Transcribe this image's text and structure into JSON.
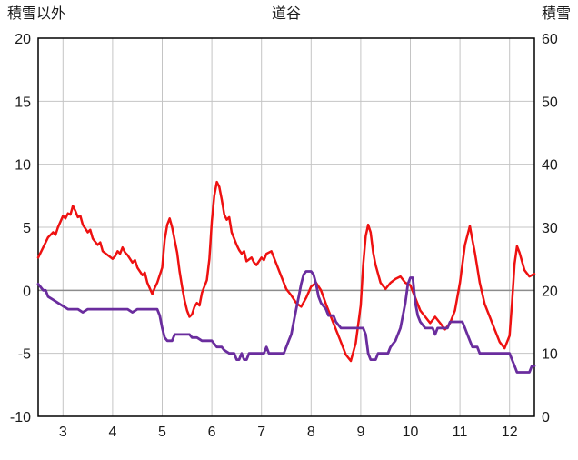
{
  "chart_data": {
    "type": "line",
    "title": "道谷",
    "x_range": [
      2.5,
      12.5
    ],
    "x_ticks": [
      3,
      4,
      5,
      6,
      7,
      8,
      9,
      10,
      11,
      12
    ],
    "grid": true,
    "left_axis": {
      "label": "積雪以外",
      "range": [
        -10,
        20
      ],
      "ticks": [
        -10,
        -5,
        0,
        5,
        10,
        15,
        20
      ]
    },
    "right_axis": {
      "label": "積雪",
      "range": [
        0,
        60
      ],
      "ticks": [
        0,
        10,
        20,
        30,
        40,
        50,
        60
      ]
    },
    "colors": {
      "grid": "#c4c4c4",
      "zero_line": "#8c8c8c",
      "border": "#000000",
      "red_series": "#ee1111",
      "purple_series": "#6a2d9e"
    },
    "series": [
      {
        "name": "積雪以外",
        "axis": "left",
        "color": "#ee1111",
        "width": 2.5,
        "points": [
          [
            2.5,
            2.6
          ],
          [
            2.6,
            3.4
          ],
          [
            2.7,
            4.2
          ],
          [
            2.8,
            4.6
          ],
          [
            2.85,
            4.4
          ],
          [
            2.9,
            5.0
          ],
          [
            3.0,
            5.9
          ],
          [
            3.05,
            5.7
          ],
          [
            3.1,
            6.1
          ],
          [
            3.15,
            6.0
          ],
          [
            3.2,
            6.7
          ],
          [
            3.25,
            6.3
          ],
          [
            3.3,
            5.8
          ],
          [
            3.35,
            5.9
          ],
          [
            3.4,
            5.2
          ],
          [
            3.5,
            4.6
          ],
          [
            3.55,
            4.8
          ],
          [
            3.6,
            4.1
          ],
          [
            3.7,
            3.6
          ],
          [
            3.75,
            3.8
          ],
          [
            3.8,
            3.1
          ],
          [
            3.9,
            2.8
          ],
          [
            4.0,
            2.5
          ],
          [
            4.05,
            2.7
          ],
          [
            4.1,
            3.1
          ],
          [
            4.15,
            2.9
          ],
          [
            4.2,
            3.4
          ],
          [
            4.25,
            3.0
          ],
          [
            4.3,
            2.8
          ],
          [
            4.4,
            2.2
          ],
          [
            4.45,
            2.4
          ],
          [
            4.5,
            1.8
          ],
          [
            4.6,
            1.2
          ],
          [
            4.65,
            1.4
          ],
          [
            4.7,
            0.6
          ],
          [
            4.8,
            -0.3
          ],
          [
            4.85,
            0.2
          ],
          [
            4.9,
            0.6
          ],
          [
            5.0,
            1.8
          ],
          [
            5.05,
            4.0
          ],
          [
            5.1,
            5.2
          ],
          [
            5.15,
            5.7
          ],
          [
            5.2,
            5.0
          ],
          [
            5.3,
            3.0
          ],
          [
            5.35,
            1.5
          ],
          [
            5.4,
            0.3
          ],
          [
            5.45,
            -0.8
          ],
          [
            5.5,
            -1.6
          ],
          [
            5.55,
            -2.1
          ],
          [
            5.6,
            -1.9
          ],
          [
            5.65,
            -1.3
          ],
          [
            5.7,
            -1.0
          ],
          [
            5.75,
            -1.2
          ],
          [
            5.8,
            -0.2
          ],
          [
            5.9,
            0.8
          ],
          [
            5.95,
            2.5
          ],
          [
            6.0,
            5.5
          ],
          [
            6.05,
            7.5
          ],
          [
            6.1,
            8.6
          ],
          [
            6.15,
            8.2
          ],
          [
            6.2,
            7.2
          ],
          [
            6.25,
            6.0
          ],
          [
            6.3,
            5.6
          ],
          [
            6.35,
            5.8
          ],
          [
            6.4,
            4.6
          ],
          [
            6.5,
            3.6
          ],
          [
            6.55,
            3.2
          ],
          [
            6.6,
            2.9
          ],
          [
            6.65,
            3.1
          ],
          [
            6.7,
            2.3
          ],
          [
            6.8,
            2.6
          ],
          [
            6.85,
            2.2
          ],
          [
            6.9,
            2.0
          ],
          [
            7.0,
            2.6
          ],
          [
            7.05,
            2.4
          ],
          [
            7.1,
            2.9
          ],
          [
            7.2,
            3.1
          ],
          [
            7.3,
            2.1
          ],
          [
            7.4,
            1.1
          ],
          [
            7.5,
            0.1
          ],
          [
            7.6,
            -0.4
          ],
          [
            7.7,
            -1.0
          ],
          [
            7.8,
            -1.3
          ],
          [
            7.9,
            -0.6
          ],
          [
            8.0,
            0.3
          ],
          [
            8.1,
            0.6
          ],
          [
            8.15,
            0.3
          ],
          [
            8.2,
            0.0
          ],
          [
            8.3,
            -1.1
          ],
          [
            8.4,
            -2.1
          ],
          [
            8.5,
            -3.1
          ],
          [
            8.6,
            -4.1
          ],
          [
            8.7,
            -5.1
          ],
          [
            8.8,
            -5.6
          ],
          [
            8.9,
            -4.2
          ],
          [
            9.0,
            -1.2
          ],
          [
            9.05,
            2.0
          ],
          [
            9.1,
            4.3
          ],
          [
            9.15,
            5.2
          ],
          [
            9.2,
            4.6
          ],
          [
            9.25,
            3.0
          ],
          [
            9.3,
            2.0
          ],
          [
            9.4,
            0.6
          ],
          [
            9.5,
            0.1
          ],
          [
            9.6,
            0.6
          ],
          [
            9.7,
            0.9
          ],
          [
            9.8,
            1.1
          ],
          [
            9.9,
            0.6
          ],
          [
            10.0,
            0.4
          ],
          [
            10.1,
            -0.6
          ],
          [
            10.2,
            -1.6
          ],
          [
            10.3,
            -2.1
          ],
          [
            10.4,
            -2.6
          ],
          [
            10.5,
            -2.1
          ],
          [
            10.6,
            -2.6
          ],
          [
            10.7,
            -3.1
          ],
          [
            10.8,
            -2.6
          ],
          [
            10.9,
            -1.6
          ],
          [
            11.0,
            0.6
          ],
          [
            11.1,
            3.6
          ],
          [
            11.2,
            5.1
          ],
          [
            11.25,
            4.0
          ],
          [
            11.3,
            3.0
          ],
          [
            11.4,
            0.6
          ],
          [
            11.5,
            -1.1
          ],
          [
            11.6,
            -2.1
          ],
          [
            11.7,
            -3.1
          ],
          [
            11.8,
            -4.1
          ],
          [
            11.9,
            -4.6
          ],
          [
            12.0,
            -3.6
          ],
          [
            12.05,
            -1.0
          ],
          [
            12.1,
            2.1
          ],
          [
            12.15,
            3.5
          ],
          [
            12.2,
            3.0
          ],
          [
            12.3,
            1.6
          ],
          [
            12.4,
            1.1
          ],
          [
            12.5,
            1.3
          ]
        ]
      },
      {
        "name": "積雪",
        "axis": "right",
        "color": "#6a2d9e",
        "width": 2.8,
        "points": [
          [
            2.5,
            21
          ],
          [
            2.6,
            20
          ],
          [
            2.65,
            20
          ],
          [
            2.7,
            19
          ],
          [
            2.8,
            18.5
          ],
          [
            2.9,
            18
          ],
          [
            3.0,
            17.5
          ],
          [
            3.1,
            17
          ],
          [
            3.3,
            17
          ],
          [
            3.4,
            16.5
          ],
          [
            3.5,
            17
          ],
          [
            4.3,
            17
          ],
          [
            4.4,
            16.5
          ],
          [
            4.5,
            17
          ],
          [
            4.9,
            17
          ],
          [
            4.95,
            16
          ],
          [
            5.0,
            14
          ],
          [
            5.05,
            12.5
          ],
          [
            5.1,
            12
          ],
          [
            5.2,
            12
          ],
          [
            5.25,
            13
          ],
          [
            5.55,
            13
          ],
          [
            5.6,
            12.5
          ],
          [
            5.7,
            12.5
          ],
          [
            5.8,
            12
          ],
          [
            6.0,
            12
          ],
          [
            6.05,
            11.5
          ],
          [
            6.1,
            11
          ],
          [
            6.2,
            11
          ],
          [
            6.25,
            10.5
          ],
          [
            6.35,
            10
          ],
          [
            6.45,
            10
          ],
          [
            6.5,
            9
          ],
          [
            6.55,
            9
          ],
          [
            6.6,
            10
          ],
          [
            6.65,
            9
          ],
          [
            6.7,
            9
          ],
          [
            6.75,
            10
          ],
          [
            7.05,
            10
          ],
          [
            7.1,
            11
          ],
          [
            7.15,
            10
          ],
          [
            7.45,
            10
          ],
          [
            7.5,
            11
          ],
          [
            7.55,
            12
          ],
          [
            7.6,
            13
          ],
          [
            7.65,
            15
          ],
          [
            7.7,
            17
          ],
          [
            7.75,
            19
          ],
          [
            7.8,
            21
          ],
          [
            7.85,
            22.5
          ],
          [
            7.9,
            23
          ],
          [
            8.0,
            23
          ],
          [
            8.05,
            22.5
          ],
          [
            8.1,
            21
          ],
          [
            8.15,
            19
          ],
          [
            8.2,
            18
          ],
          [
            8.3,
            17
          ],
          [
            8.35,
            16
          ],
          [
            8.45,
            16
          ],
          [
            8.5,
            15
          ],
          [
            8.6,
            14
          ],
          [
            9.05,
            14
          ],
          [
            9.1,
            13
          ],
          [
            9.15,
            10
          ],
          [
            9.2,
            9
          ],
          [
            9.3,
            9
          ],
          [
            9.35,
            10
          ],
          [
            9.55,
            10
          ],
          [
            9.6,
            11
          ],
          [
            9.7,
            12
          ],
          [
            9.75,
            13
          ],
          [
            9.8,
            14
          ],
          [
            9.85,
            16
          ],
          [
            9.9,
            18
          ],
          [
            9.95,
            21
          ],
          [
            10.0,
            22
          ],
          [
            10.05,
            22
          ],
          [
            10.1,
            18
          ],
          [
            10.15,
            16
          ],
          [
            10.2,
            15
          ],
          [
            10.3,
            14
          ],
          [
            10.45,
            14
          ],
          [
            10.5,
            13
          ],
          [
            10.55,
            14
          ],
          [
            10.75,
            14
          ],
          [
            10.8,
            15
          ],
          [
            11.05,
            15
          ],
          [
            11.1,
            14
          ],
          [
            11.15,
            13
          ],
          [
            11.2,
            12
          ],
          [
            11.25,
            11
          ],
          [
            11.35,
            11
          ],
          [
            11.4,
            10
          ],
          [
            12.0,
            10
          ],
          [
            12.05,
            9
          ],
          [
            12.1,
            8
          ],
          [
            12.15,
            7
          ],
          [
            12.4,
            7
          ],
          [
            12.45,
            8
          ],
          [
            12.5,
            8
          ]
        ]
      }
    ]
  }
}
